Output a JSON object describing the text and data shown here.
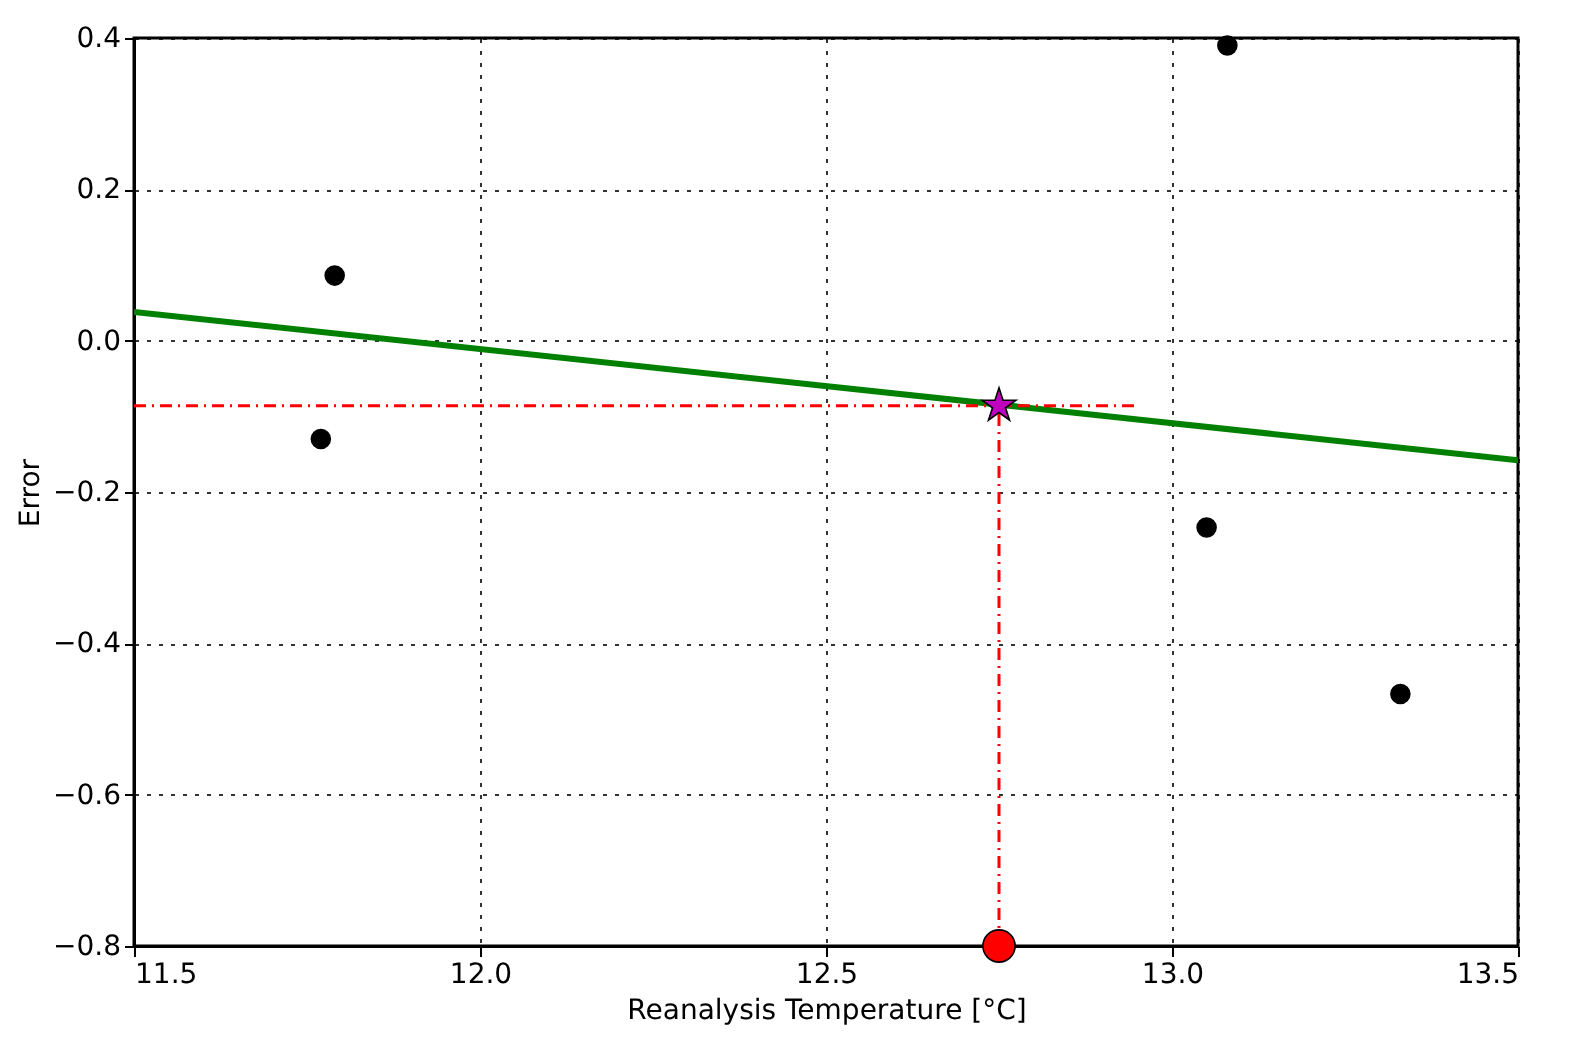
{
  "chart_data": {
    "type": "scatter",
    "xlabel": "Reanalysis Temperature [°C]",
    "ylabel": "Error",
    "xlim": [
      11.5,
      13.5
    ],
    "xticks": [
      {
        "value": 11.5,
        "label": "11.5"
      },
      {
        "value": 12,
        "label": "12.0"
      },
      {
        "value": 12.5,
        "label": "12.5"
      },
      {
        "value": 13,
        "label": "13.0"
      },
      {
        "value": 13.5,
        "label": "13.5"
      }
    ],
    "ylim": [
      -0.8,
      0.4
    ],
    "yticks": [
      {
        "value": -0.8,
        "label": "−0.8"
      },
      {
        "value": -0.6,
        "label": "−0.6"
      },
      {
        "value": -0.4,
        "label": "−0.4"
      },
      {
        "value": -0.2,
        "label": "−0.2"
      },
      {
        "value": 0,
        "label": "0.0"
      },
      {
        "value": 0.2,
        "label": "0.2"
      },
      {
        "value": 0.4,
        "label": "0.4"
      }
    ],
    "grid": true,
    "series": [
      {
        "type": "line",
        "color": "#008000",
        "line_style": "solid",
        "x": [
          11.5,
          13.5
        ],
        "values": [
          0.038,
          -0.158
        ]
      },
      {
        "type": "line",
        "color": "#ff0000",
        "line_style": "dashed",
        "x": [
          11.5,
          12.95
        ],
        "values": [
          -0.086,
          -0.086
        ]
      },
      {
        "type": "line",
        "color": "#ff0000",
        "line_style": "dashed",
        "x": [
          12.75,
          12.75
        ],
        "values": [
          -0.8,
          -0.086
        ]
      },
      {
        "color": "#000000",
        "marker": "circle",
        "x": [
          11.77,
          11.79,
          13.08,
          13.05,
          13.33
        ],
        "values": [
          -0.13,
          0.086,
          0.39,
          -0.247,
          -0.467
        ]
      },
      {
        "color": "#bf00bf",
        "marker": "star",
        "x": [
          12.75
        ],
        "values": [
          -0.086
        ]
      },
      {
        "color": "#ff0000",
        "marker": "circle",
        "x": [
          12.75
        ],
        "values": [
          -0.8
        ]
      }
    ]
  }
}
